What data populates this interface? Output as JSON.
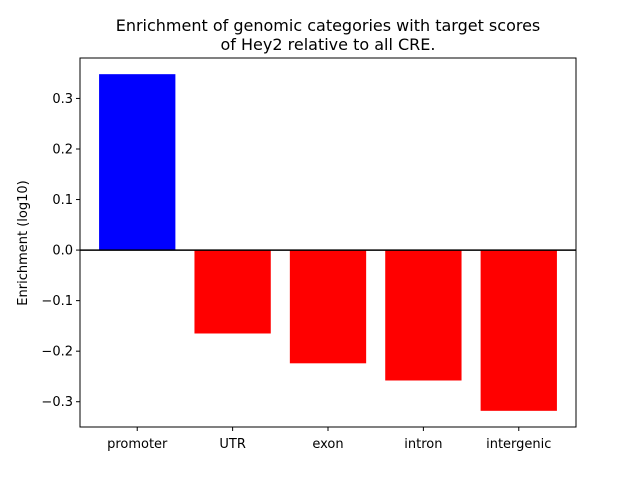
{
  "chart_data": {
    "type": "bar",
    "title_line1": "Enrichment of genomic categories with target scores",
    "title_line2": "of Hey2 relative to all CRE.",
    "xlabel": "",
    "ylabel": "Enrichment (log10)",
    "categories": [
      "promoter",
      "UTR",
      "exon",
      "intron",
      "intergenic"
    ],
    "values": [
      0.348,
      -0.165,
      -0.224,
      -0.258,
      -0.318
    ],
    "bar_colors": [
      "#0000ff",
      "#ff0000",
      "#ff0000",
      "#ff0000",
      "#ff0000"
    ],
    "ylim": [
      -0.35,
      0.38
    ],
    "yticks": [
      -0.3,
      -0.2,
      -0.1,
      0.0,
      0.1,
      0.2,
      0.3
    ],
    "ytick_labels": [
      "−0.3",
      "−0.2",
      "−0.1",
      "0.0",
      "0.1",
      "0.2",
      "0.3"
    ],
    "zero_line": true,
    "grid": false
  }
}
